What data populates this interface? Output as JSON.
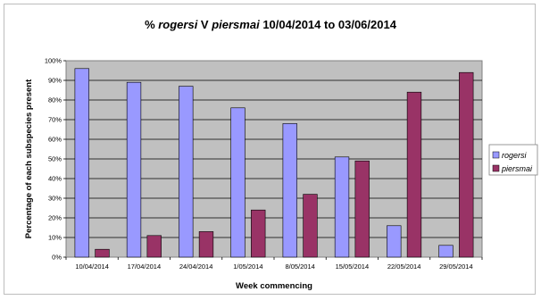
{
  "chart_data": {
    "type": "bar",
    "title_parts": [
      {
        "text": "% ",
        "italic": false
      },
      {
        "text": "rogersi",
        "italic": true
      },
      {
        "text": " V ",
        "italic": false
      },
      {
        "text": "piersmai",
        "italic": true
      },
      {
        "text": " 10/04/2014 to 03/06/2014",
        "italic": false
      }
    ],
    "xlabel": "Week commencing",
    "ylabel": "Percentage of each subspecies present",
    "categories": [
      "10/04/2014",
      "17/04/2014",
      "24/04/2014",
      "1/05/2014",
      "8/05/2014",
      "15/05/2014",
      "22/05/2014",
      "29/05/2014"
    ],
    "yticks": [
      "0%",
      "10%",
      "20%",
      "30%",
      "40%",
      "50%",
      "60%",
      "70%",
      "80%",
      "90%",
      "100%"
    ],
    "ylim": [
      0,
      100
    ],
    "grid": true,
    "legend_position": "right",
    "series": [
      {
        "name": "rogersi",
        "color": "#9999ff",
        "values": [
          96,
          89,
          87,
          76,
          68,
          51,
          16,
          6
        ]
      },
      {
        "name": "piersmai",
        "color": "#993366",
        "values": [
          4,
          11,
          13,
          24,
          32,
          49,
          84,
          94
        ]
      }
    ]
  }
}
